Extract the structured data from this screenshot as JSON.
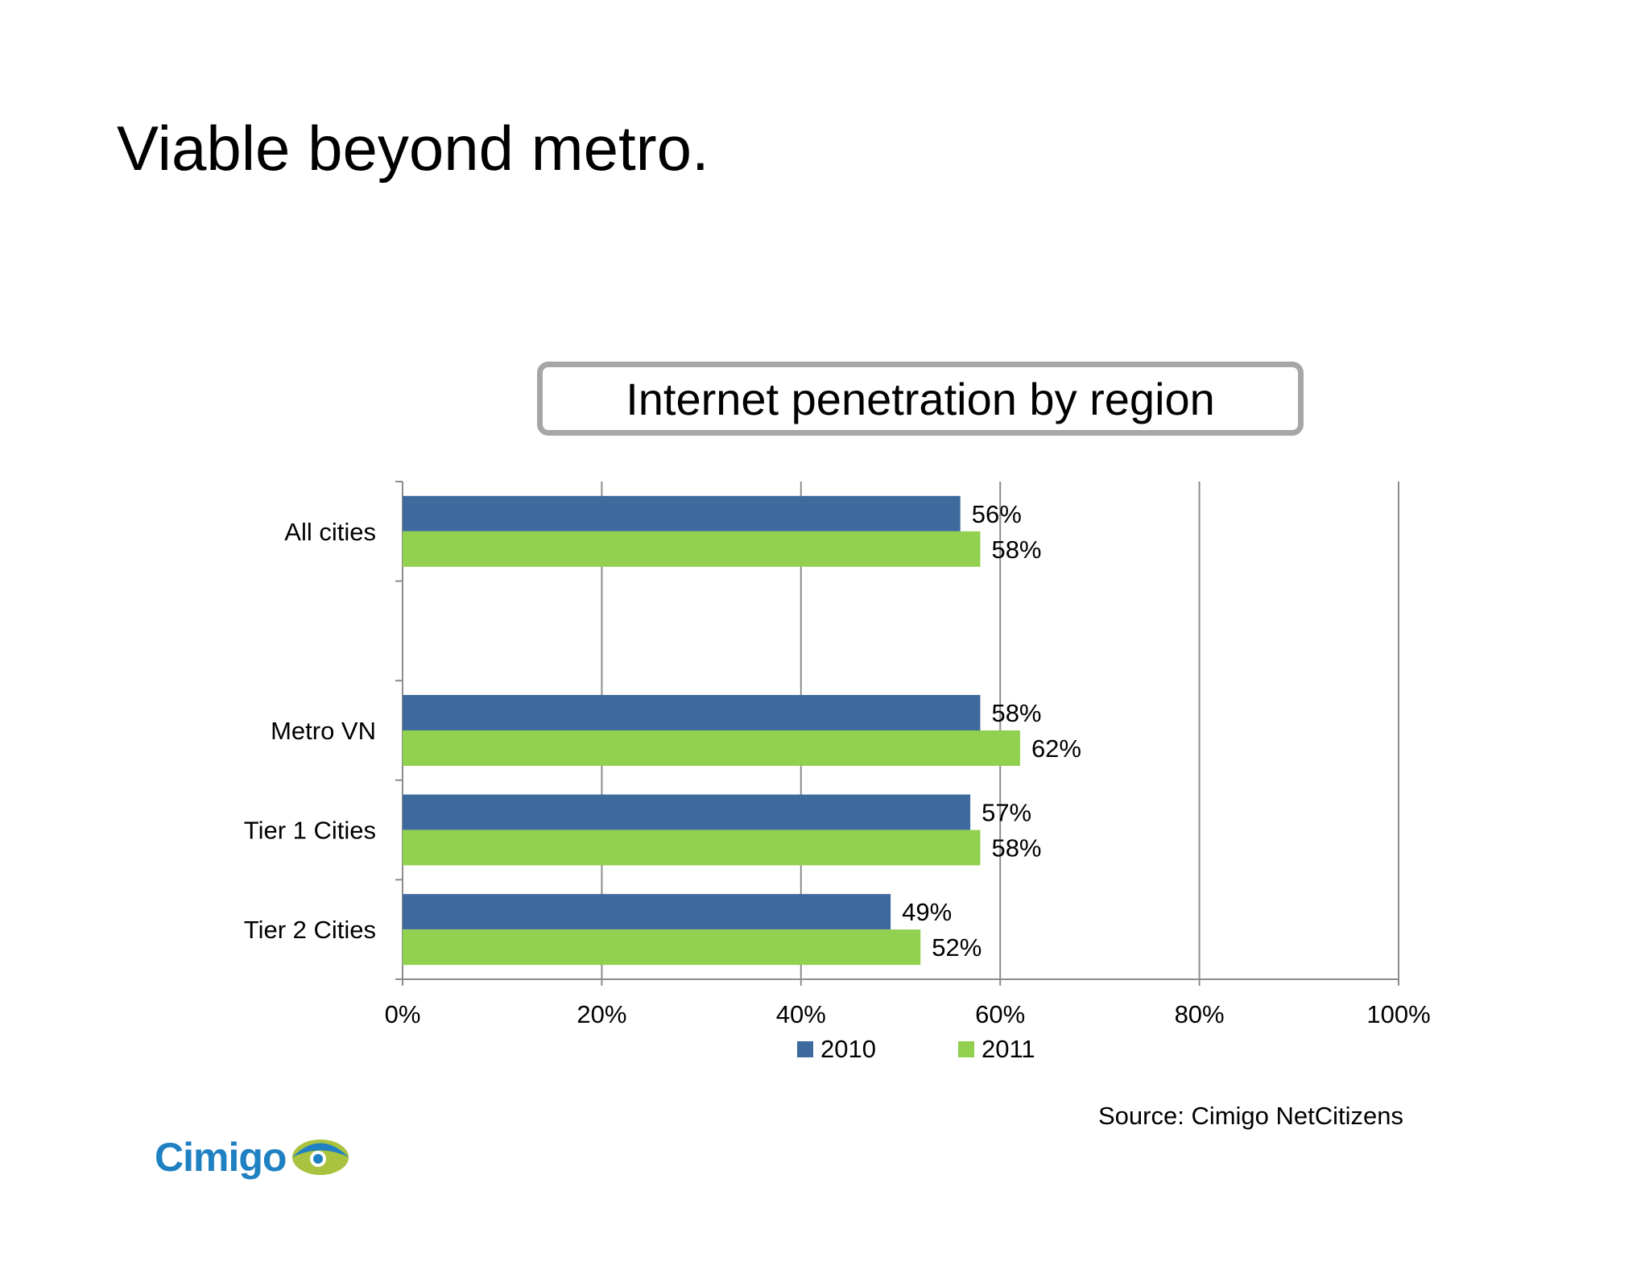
{
  "slide": {
    "title": "Viable beyond metro.",
    "source": "Source: Cimigo NetCitizens",
    "logo_text": "Cimigo"
  },
  "chart_data": {
    "type": "bar",
    "orientation": "horizontal",
    "title": "Internet penetration by region",
    "categories": [
      "All cities",
      "",
      "Metro VN",
      "Tier 1 Cities",
      "Tier 2 Cities"
    ],
    "series": [
      {
        "name": "2010",
        "color": "#3f6a9e",
        "values": [
          56,
          null,
          58,
          57,
          49
        ],
        "labels": [
          "56%",
          "",
          "58%",
          "57%",
          "49%"
        ]
      },
      {
        "name": "2011",
        "color": "#92d050",
        "values": [
          58,
          null,
          62,
          58,
          52
        ],
        "labels": [
          "58%",
          "",
          "62%",
          "58%",
          "52%"
        ]
      }
    ],
    "x_ticks": [
      "0%",
      "20%",
      "40%",
      "60%",
      "80%",
      "100%"
    ],
    "xlim": [
      0,
      100
    ],
    "grid": true,
    "legend": "bottom"
  },
  "colors": {
    "series_2010": "#3f6a9e",
    "series_2011": "#92d050",
    "grid": "#8c8c8c",
    "logo_blue": "#1f80c2",
    "logo_green": "#a9c23f"
  }
}
